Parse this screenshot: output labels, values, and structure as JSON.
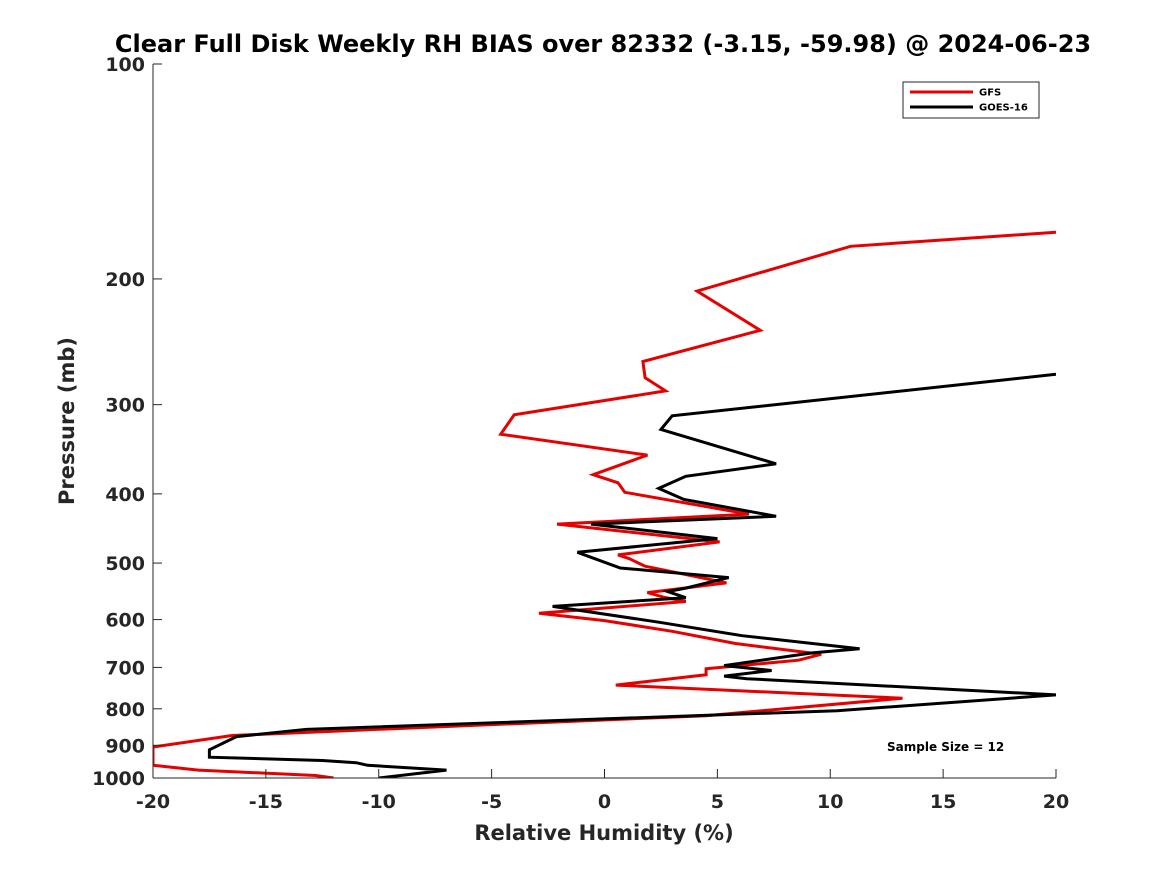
{
  "chart_data": {
    "type": "line",
    "title": "Clear Full Disk Weekly RH BIAS over 82332 (-3.15, -59.98) @ 2024-06-23",
    "xlabel": "Relative Humidity (%)",
    "ylabel": "Pressure (mb)",
    "xlim": [
      -20,
      20
    ],
    "ylim": [
      100,
      1000
    ],
    "yscale": "log",
    "yreversed": true,
    "xticks": [
      -20,
      -15,
      -10,
      -5,
      0,
      5,
      10,
      15,
      20
    ],
    "xtick_labels": [
      "-20",
      "-15",
      "-10",
      "-5",
      "0",
      "5",
      "10",
      "15",
      "20"
    ],
    "yticks": [
      100,
      200,
      300,
      400,
      500,
      600,
      700,
      800,
      900,
      1000
    ],
    "ytick_labels": [
      "100",
      "200",
      "300",
      "400",
      "500",
      "600",
      "700",
      "800",
      "900",
      "1000"
    ],
    "grid": false,
    "legend_position": "top-right",
    "annotation": "Sample Size = 12",
    "series": [
      {
        "name": "GFS",
        "color": "#e60000",
        "points": [
          [
            20,
            172
          ],
          [
            10.9,
            180
          ],
          [
            4.1,
            208
          ],
          [
            6.9,
            236
          ],
          [
            1.7,
            261
          ],
          [
            1.8,
            275
          ],
          [
            2.7,
            287
          ],
          [
            -4.0,
            310
          ],
          [
            -4.6,
            330
          ],
          [
            1.9,
            353
          ],
          [
            -0.5,
            376
          ],
          [
            0.6,
            386
          ],
          [
            0.9,
            398
          ],
          [
            6.4,
            427
          ],
          [
            -2.1,
            441
          ],
          [
            5.1,
            467
          ],
          [
            0.6,
            487
          ],
          [
            1.1,
            493
          ],
          [
            1.8,
            505
          ],
          [
            5.4,
            533
          ],
          [
            1.9,
            550
          ],
          [
            2.6,
            558
          ],
          [
            3.6,
            566
          ],
          [
            -2.9,
            588
          ],
          [
            0.0,
            602
          ],
          [
            3.0,
            623
          ],
          [
            5.8,
            648
          ],
          [
            9.6,
            671
          ],
          [
            8.6,
            684
          ],
          [
            4.5,
            703
          ],
          [
            4.5,
            717
          ],
          [
            0.5,
            741
          ],
          [
            13.2,
            773
          ],
          [
            4.5,
            818
          ],
          [
            -12.0,
            860
          ],
          [
            -16.5,
            872
          ],
          [
            -20,
            905
          ],
          [
            -20,
            960
          ],
          [
            -18.0,
            975
          ],
          [
            -12.8,
            992
          ],
          [
            -12.0,
            1000
          ]
        ]
      },
      {
        "name": "GOES-16",
        "color": "#000000",
        "points": [
          [
            20,
            272
          ],
          [
            3.0,
            311
          ],
          [
            2.5,
            325
          ],
          [
            7.6,
            363
          ],
          [
            3.6,
            378
          ],
          [
            2.4,
            393
          ],
          [
            3.5,
            407
          ],
          [
            7.6,
            430
          ],
          [
            -0.6,
            441
          ],
          [
            5.0,
            462
          ],
          [
            -1.2,
            483
          ],
          [
            0.7,
            508
          ],
          [
            5.5,
            524
          ],
          [
            3.6,
            542
          ],
          [
            2.8,
            548
          ],
          [
            3.6,
            559
          ],
          [
            -2.3,
            575
          ],
          [
            2.4,
            605
          ],
          [
            6.1,
            632
          ],
          [
            11.3,
            659
          ],
          [
            9.2,
            668
          ],
          [
            5.3,
            696
          ],
          [
            7.4,
            707
          ],
          [
            5.3,
            720
          ],
          [
            6.3,
            726
          ],
          [
            20,
            765
          ],
          [
            10.3,
            805
          ],
          [
            -13.2,
            855
          ],
          [
            -16.3,
            875
          ],
          [
            -17.5,
            913
          ],
          [
            -17.5,
            935
          ],
          [
            -12.5,
            945
          ],
          [
            -11.0,
            952
          ],
          [
            -10.5,
            960
          ],
          [
            -7.0,
            975
          ],
          [
            -10.0,
            1000
          ]
        ]
      }
    ]
  }
}
